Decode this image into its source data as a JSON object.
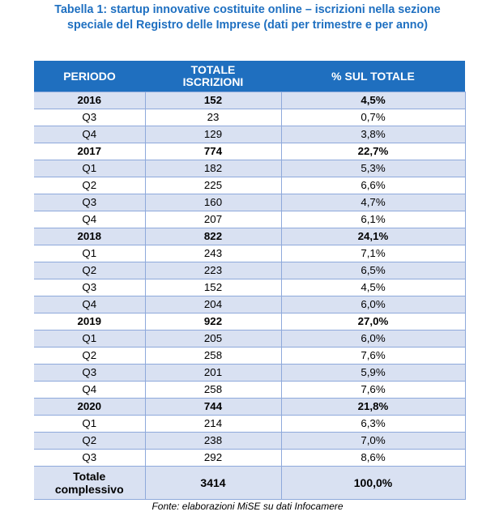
{
  "title": {
    "line1": "Tabella 1: startup innovative costituite online – iscrizioni nella sezione",
    "line2": "speciale del Registro delle Imprese (dati per trimestre e per anno)"
  },
  "table": {
    "headers": {
      "periodo": "PERIODO",
      "totale_line1": "TOTALE",
      "totale_line2": "ISCRIZIONI",
      "percentuale": "% SUL TOTALE"
    },
    "rows": [
      {
        "periodo": "2016",
        "totale": "152",
        "percentuale": "4,5%",
        "type": "year"
      },
      {
        "periodo": "Q3",
        "totale": "23",
        "percentuale": "0,7%",
        "type": "quarter"
      },
      {
        "periodo": "Q4",
        "totale": "129",
        "percentuale": "3,8%",
        "type": "quarter"
      },
      {
        "periodo": "2017",
        "totale": "774",
        "percentuale": "22,7%",
        "type": "year"
      },
      {
        "periodo": "Q1",
        "totale": "182",
        "percentuale": "5,3%",
        "type": "quarter"
      },
      {
        "periodo": "Q2",
        "totale": "225",
        "percentuale": "6,6%",
        "type": "quarter"
      },
      {
        "periodo": "Q3",
        "totale": "160",
        "percentuale": "4,7%",
        "type": "quarter"
      },
      {
        "periodo": "Q4",
        "totale": "207",
        "percentuale": "6,1%",
        "type": "quarter"
      },
      {
        "periodo": "2018",
        "totale": "822",
        "percentuale": "24,1%",
        "type": "year"
      },
      {
        "periodo": "Q1",
        "totale": "243",
        "percentuale": "7,1%",
        "type": "quarter"
      },
      {
        "periodo": "Q2",
        "totale": "223",
        "percentuale": "6,5%",
        "type": "quarter"
      },
      {
        "periodo": "Q3",
        "totale": "152",
        "percentuale": "4,5%",
        "type": "quarter"
      },
      {
        "periodo": "Q4",
        "totale": "204",
        "percentuale": "6,0%",
        "type": "quarter"
      },
      {
        "periodo": "2019",
        "totale": "922",
        "percentuale": "27,0%",
        "type": "year"
      },
      {
        "periodo": "Q1",
        "totale": "205",
        "percentuale": "6,0%",
        "type": "quarter"
      },
      {
        "periodo": "Q2",
        "totale": "258",
        "percentuale": "7,6%",
        "type": "quarter"
      },
      {
        "periodo": "Q3",
        "totale": "201",
        "percentuale": "5,9%",
        "type": "quarter"
      },
      {
        "periodo": "Q4",
        "totale": "258",
        "percentuale": "7,6%",
        "type": "quarter"
      },
      {
        "periodo": "2020",
        "totale": "744",
        "percentuale": "21,8%",
        "type": "year"
      },
      {
        "periodo": "Q1",
        "totale": "214",
        "percentuale": "6,3%",
        "type": "quarter"
      },
      {
        "periodo": "Q2",
        "totale": "238",
        "percentuale": "7,0%",
        "type": "quarter"
      },
      {
        "periodo": "Q3",
        "totale": "292",
        "percentuale": "8,6%",
        "type": "quarter"
      }
    ],
    "total": {
      "periodo_line1": "Totale",
      "periodo_line2": "complessivo",
      "totale": "3414",
      "percentuale": "100,0%"
    }
  },
  "source": "Fonte: elaborazioni MiSE su dati Infocamere",
  "colors": {
    "title": "#1F70C1",
    "header_bg": "#1F6FBF",
    "header_text": "#FFFFFF",
    "row_shade": "#D9E1F2",
    "border": "#8EA9DB"
  }
}
